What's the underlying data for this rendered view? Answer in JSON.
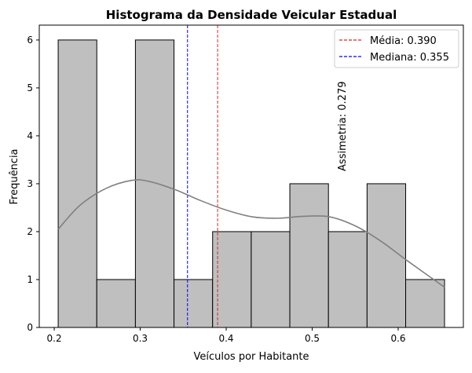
{
  "chart_data": {
    "type": "bar",
    "title": "Histograma da Densidade Veicular Estadual",
    "xlabel": "Veículos por Habitante",
    "ylabel": "Frequência",
    "xlim": [
      0.1826,
      0.6758
    ],
    "ylim": [
      0,
      6.31
    ],
    "xticks": [
      0.2,
      0.3,
      0.4,
      0.5,
      0.6
    ],
    "xtick_labels": [
      "0.2",
      "0.3",
      "0.4",
      "0.5",
      "0.6"
    ],
    "yticks": [
      0,
      1,
      2,
      3,
      4,
      5,
      6
    ],
    "ytick_labels": [
      "0",
      "1",
      "2",
      "3",
      "4",
      "5",
      "6"
    ],
    "grid": false,
    "bins": {
      "edges": [
        0.2046,
        0.2495,
        0.2944,
        0.3393,
        0.3842,
        0.4291,
        0.474,
        0.5189,
        0.5638,
        0.6087,
        0.6539
      ],
      "counts": [
        6,
        1,
        6,
        1,
        2,
        2,
        3,
        2,
        3,
        1
      ]
    },
    "bar_color": "#bfbfbf",
    "bar_edge_color": "#000000",
    "kde": {
      "color": "#808080",
      "x": [
        0.2046,
        0.23,
        0.26,
        0.29,
        0.31,
        0.34,
        0.37,
        0.4,
        0.43,
        0.46,
        0.49,
        0.52,
        0.55,
        0.58,
        0.61,
        0.6539
      ],
      "y": [
        2.05,
        2.55,
        2.9,
        3.07,
        3.05,
        2.88,
        2.65,
        2.45,
        2.31,
        2.28,
        2.32,
        2.31,
        2.12,
        1.8,
        1.4,
        0.84
      ]
    },
    "lines": [
      {
        "label": "Média: 0.390",
        "x": 0.39,
        "color": "#d62728"
      },
      {
        "label": "Mediana: 0.355",
        "x": 0.355,
        "color": "#0000ff"
      }
    ],
    "legend_position": "top-right",
    "annotation": {
      "text": "Assimetria: 0.279",
      "x": 0.535,
      "y": 4.2,
      "rotation": "vertical"
    }
  }
}
